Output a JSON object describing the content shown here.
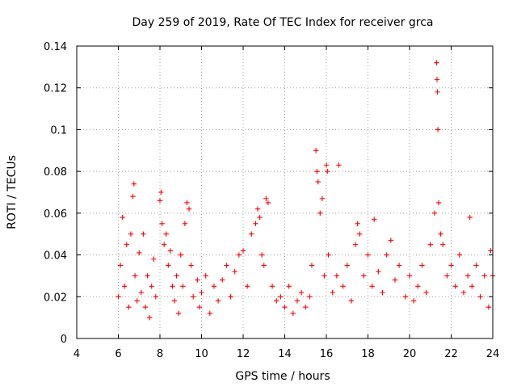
{
  "chart_data": {
    "type": "scatter",
    "title": "Day 259 of 2019, Rate Of TEC Index for receiver grca",
    "xlabel": "GPS time / hours",
    "ylabel": "ROTI / TECUs",
    "xlim": [
      4,
      24
    ],
    "ylim": [
      0,
      0.14
    ],
    "x_ticks": [
      "4",
      "6",
      "8",
      "10",
      "12",
      "14",
      "16",
      "18",
      "20",
      "22",
      "24"
    ],
    "y_ticks": [
      "0",
      "0.02",
      "0.04",
      "0.06",
      "0.08",
      "0.1",
      "0.12",
      "0.14"
    ],
    "grid": true,
    "marker": "+",
    "series": [
      {
        "name": "ROTI",
        "color": "#ff0000",
        "points": [
          [
            6.0,
            0.02
          ],
          [
            6.1,
            0.035
          ],
          [
            6.2,
            0.058
          ],
          [
            6.3,
            0.025
          ],
          [
            6.4,
            0.045
          ],
          [
            6.5,
            0.015
          ],
          [
            6.6,
            0.05
          ],
          [
            6.7,
            0.068
          ],
          [
            6.75,
            0.074
          ],
          [
            6.8,
            0.03
          ],
          [
            6.9,
            0.018
          ],
          [
            7.0,
            0.041
          ],
          [
            7.1,
            0.022
          ],
          [
            7.2,
            0.05
          ],
          [
            7.3,
            0.015
          ],
          [
            7.4,
            0.03
          ],
          [
            7.5,
            0.01
          ],
          [
            7.6,
            0.025
          ],
          [
            7.7,
            0.038
          ],
          [
            7.8,
            0.02
          ],
          [
            8.0,
            0.066
          ],
          [
            8.05,
            0.07
          ],
          [
            8.1,
            0.055
          ],
          [
            8.2,
            0.045
          ],
          [
            8.3,
            0.05
          ],
          [
            8.4,
            0.035
          ],
          [
            8.5,
            0.042
          ],
          [
            8.6,
            0.025
          ],
          [
            8.7,
            0.018
          ],
          [
            8.8,
            0.03
          ],
          [
            8.9,
            0.012
          ],
          [
            9.0,
            0.04
          ],
          [
            9.1,
            0.025
          ],
          [
            9.2,
            0.055
          ],
          [
            9.3,
            0.065
          ],
          [
            9.4,
            0.062
          ],
          [
            9.5,
            0.035
          ],
          [
            9.6,
            0.02
          ],
          [
            9.8,
            0.028
          ],
          [
            9.9,
            0.015
          ],
          [
            10.0,
            0.022
          ],
          [
            10.2,
            0.03
          ],
          [
            10.4,
            0.012
          ],
          [
            10.6,
            0.025
          ],
          [
            10.8,
            0.018
          ],
          [
            11.0,
            0.028
          ],
          [
            11.2,
            0.035
          ],
          [
            11.4,
            0.02
          ],
          [
            11.6,
            0.032
          ],
          [
            11.8,
            0.04
          ],
          [
            12.0,
            0.042
          ],
          [
            12.2,
            0.025
          ],
          [
            12.4,
            0.05
          ],
          [
            12.6,
            0.055
          ],
          [
            12.7,
            0.062
          ],
          [
            12.8,
            0.058
          ],
          [
            12.9,
            0.04
          ],
          [
            13.0,
            0.035
          ],
          [
            13.1,
            0.067
          ],
          [
            13.2,
            0.065
          ],
          [
            13.4,
            0.025
          ],
          [
            13.6,
            0.018
          ],
          [
            13.8,
            0.02
          ],
          [
            14.0,
            0.015
          ],
          [
            14.2,
            0.025
          ],
          [
            14.4,
            0.012
          ],
          [
            14.6,
            0.018
          ],
          [
            14.8,
            0.022
          ],
          [
            15.0,
            0.015
          ],
          [
            15.2,
            0.02
          ],
          [
            15.3,
            0.035
          ],
          [
            15.5,
            0.09
          ],
          [
            15.55,
            0.08
          ],
          [
            15.6,
            0.075
          ],
          [
            15.7,
            0.06
          ],
          [
            15.8,
            0.067
          ],
          [
            15.9,
            0.03
          ],
          [
            16.0,
            0.083
          ],
          [
            16.05,
            0.08
          ],
          [
            16.1,
            0.04
          ],
          [
            16.3,
            0.022
          ],
          [
            16.5,
            0.03
          ],
          [
            16.6,
            0.083
          ],
          [
            16.8,
            0.025
          ],
          [
            17.0,
            0.035
          ],
          [
            17.2,
            0.018
          ],
          [
            17.4,
            0.045
          ],
          [
            17.5,
            0.055
          ],
          [
            17.6,
            0.05
          ],
          [
            17.8,
            0.03
          ],
          [
            18.0,
            0.04
          ],
          [
            18.2,
            0.025
          ],
          [
            18.3,
            0.057
          ],
          [
            18.5,
            0.032
          ],
          [
            18.7,
            0.022
          ],
          [
            18.9,
            0.04
          ],
          [
            19.1,
            0.047
          ],
          [
            19.3,
            0.028
          ],
          [
            19.5,
            0.035
          ],
          [
            19.8,
            0.02
          ],
          [
            20.0,
            0.03
          ],
          [
            20.2,
            0.018
          ],
          [
            20.4,
            0.025
          ],
          [
            20.6,
            0.035
          ],
          [
            20.8,
            0.022
          ],
          [
            21.0,
            0.045
          ],
          [
            21.2,
            0.06
          ],
          [
            21.3,
            0.132
          ],
          [
            21.32,
            0.124
          ],
          [
            21.34,
            0.118
          ],
          [
            21.36,
            0.1
          ],
          [
            21.4,
            0.065
          ],
          [
            21.5,
            0.05
          ],
          [
            21.6,
            0.045
          ],
          [
            21.8,
            0.03
          ],
          [
            22.0,
            0.035
          ],
          [
            22.2,
            0.025
          ],
          [
            22.4,
            0.04
          ],
          [
            22.6,
            0.022
          ],
          [
            22.8,
            0.03
          ],
          [
            22.9,
            0.058
          ],
          [
            23.0,
            0.025
          ],
          [
            23.2,
            0.035
          ],
          [
            23.4,
            0.02
          ],
          [
            23.6,
            0.03
          ],
          [
            23.8,
            0.015
          ],
          [
            23.9,
            0.042
          ],
          [
            24.0,
            0.03
          ]
        ]
      }
    ]
  }
}
